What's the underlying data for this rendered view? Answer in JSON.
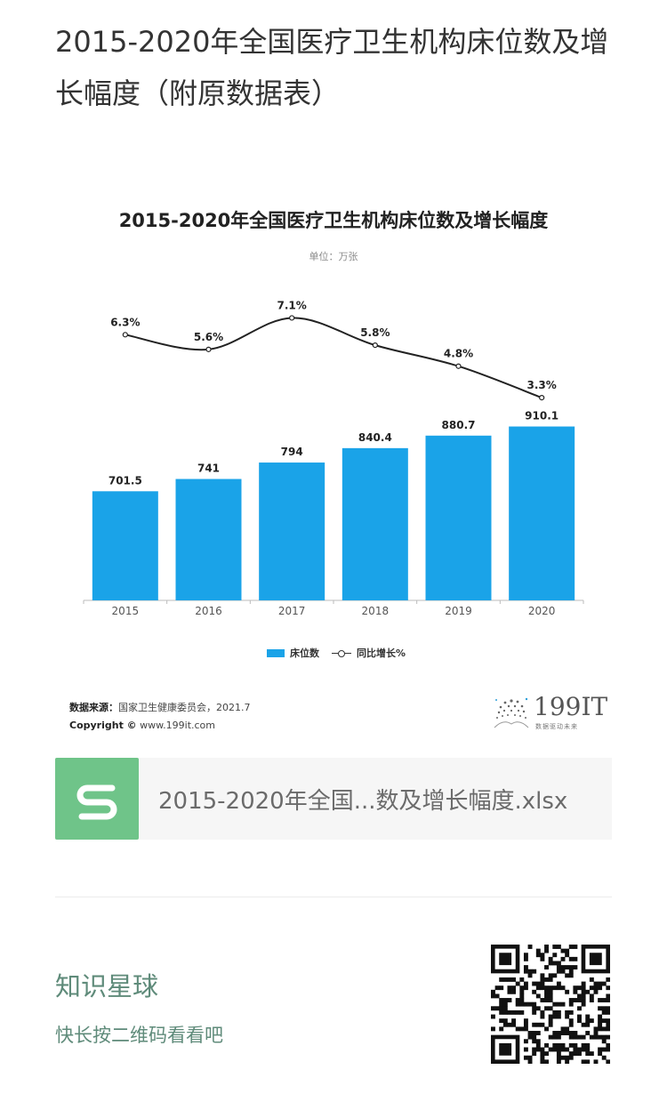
{
  "page": {
    "title": "2015-2020年全国医疗卫生机构床位数及增长幅度（附原数据表）"
  },
  "chart_data": {
    "type": "bar",
    "title": "2015-2020年全国医疗卫生机构床位数及增长幅度",
    "unit": "单位：万张",
    "categories": [
      "2015",
      "2016",
      "2017",
      "2018",
      "2019",
      "2020"
    ],
    "series": [
      {
        "name": "床位数",
        "kind": "bar",
        "values": [
          701.5,
          741,
          794,
          840.4,
          880.7,
          910.1
        ],
        "labels": [
          "701.5",
          "741",
          "794",
          "840.4",
          "880.7",
          "910.1"
        ],
        "color": "#1aa3e8"
      },
      {
        "name": "同比增长%",
        "kind": "line",
        "values": [
          6.3,
          5.6,
          7.1,
          5.8,
          4.8,
          3.3
        ],
        "labels": [
          "6.3%",
          "5.6%",
          "7.1%",
          "5.8%",
          "4.8%",
          "3.3%"
        ],
        "color": "#222222"
      }
    ],
    "legend_position": "bottom-center",
    "grid": false
  },
  "source": {
    "label": "数据来源：",
    "text": "国家卫生健康委员会，2021.7",
    "copyright_label": "Copyright ©",
    "copyright_text": "www.199it.com"
  },
  "logo": {
    "text": "199IT",
    "subtitle": "数据驱动未来"
  },
  "file": {
    "name": "2015-2020年全国...数及增长幅度.xlsx",
    "icon": "spreadsheet-s-icon",
    "icon_color": "#6fc489"
  },
  "promo": {
    "title": "知识星球",
    "subtitle": "快长按二维码看看吧",
    "qr_icon": "qr-code-icon"
  }
}
